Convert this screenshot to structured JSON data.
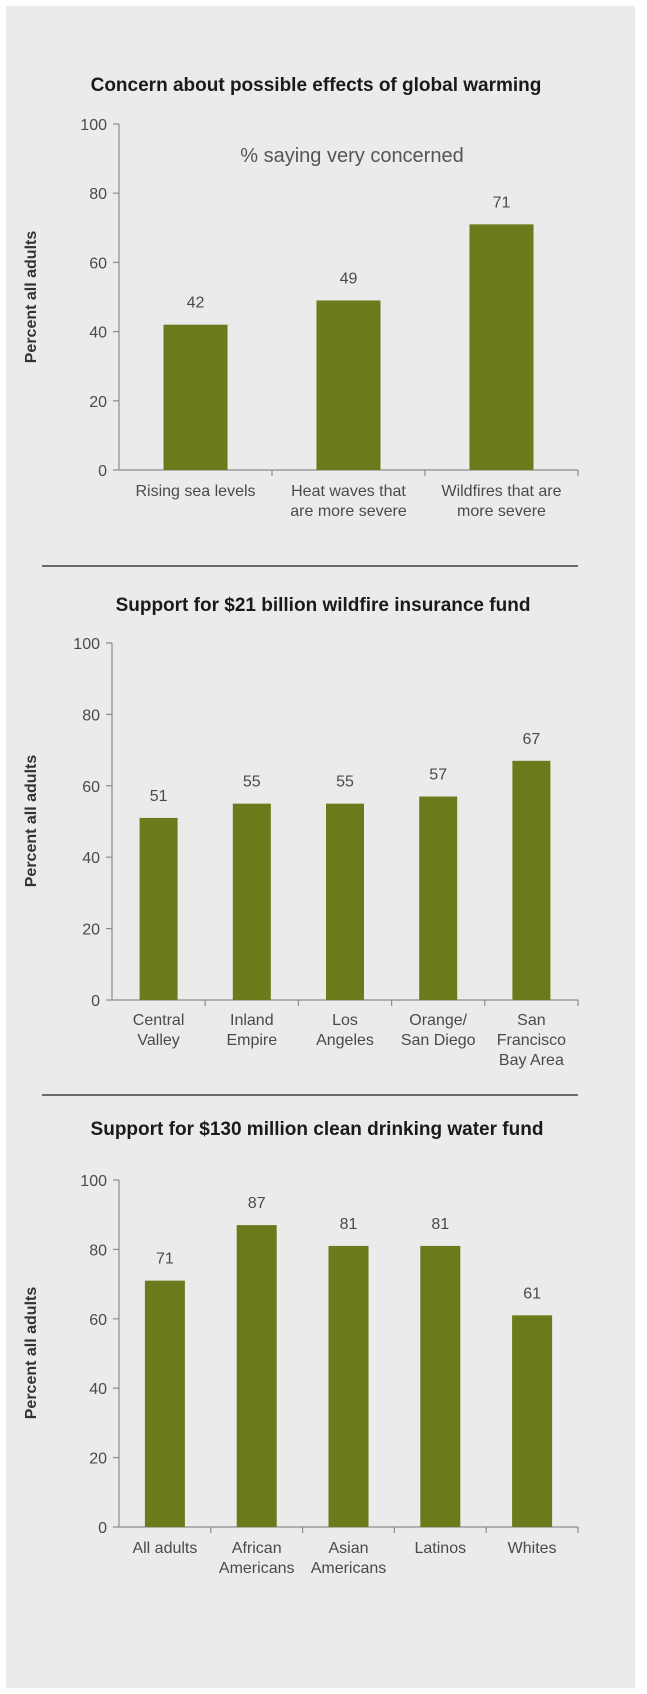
{
  "chart_data": [
    {
      "type": "bar",
      "title": "Concern about possible effects of global warming",
      "subtitle": "% saying very concerned",
      "ylabel": "Percent all adults",
      "xlabel": "",
      "ylim": [
        0,
        100
      ],
      "yticks": [
        0,
        20,
        40,
        60,
        80,
        100
      ],
      "categories": [
        [
          "Rising sea levels"
        ],
        [
          "Heat waves that",
          "are more severe"
        ],
        [
          "Wildfires that are",
          "more severe"
        ]
      ],
      "values": [
        42,
        49,
        71
      ],
      "color": "#6b7a1a",
      "grid": false
    },
    {
      "type": "bar",
      "title": "Support for $21 billion wildfire insurance fund",
      "subtitle": "",
      "ylabel": "Percent all adults",
      "xlabel": "",
      "ylim": [
        0,
        100
      ],
      "yticks": [
        0,
        20,
        40,
        60,
        80,
        100
      ],
      "categories": [
        [
          "Central",
          "Valley"
        ],
        [
          "Inland",
          "Empire"
        ],
        [
          "Los",
          "Angeles"
        ],
        [
          "Orange/",
          "San Diego"
        ],
        [
          "San",
          "Francisco",
          "Bay Area"
        ]
      ],
      "values": [
        51,
        55,
        55,
        57,
        67
      ],
      "color": "#6b7a1a",
      "grid": false
    },
    {
      "type": "bar",
      "title": "Support for $130 million clean drinking water fund",
      "subtitle": "",
      "ylabel": "Percent all adults",
      "xlabel": "",
      "ylim": [
        0,
        100
      ],
      "yticks": [
        0,
        20,
        40,
        60,
        80,
        100
      ],
      "categories": [
        [
          "All adults"
        ],
        [
          "African",
          "Americans"
        ],
        [
          "Asian",
          "Americans"
        ],
        [
          "Latinos"
        ],
        [
          "Whites"
        ]
      ],
      "values": [
        71,
        87,
        81,
        81,
        61
      ],
      "color": "#6b7a1a",
      "grid": false
    }
  ],
  "colors": {
    "panel_background": "#ebebeb",
    "bar": "#6b7a1a",
    "axis": "#8c8c8c",
    "divider": "#404040"
  }
}
